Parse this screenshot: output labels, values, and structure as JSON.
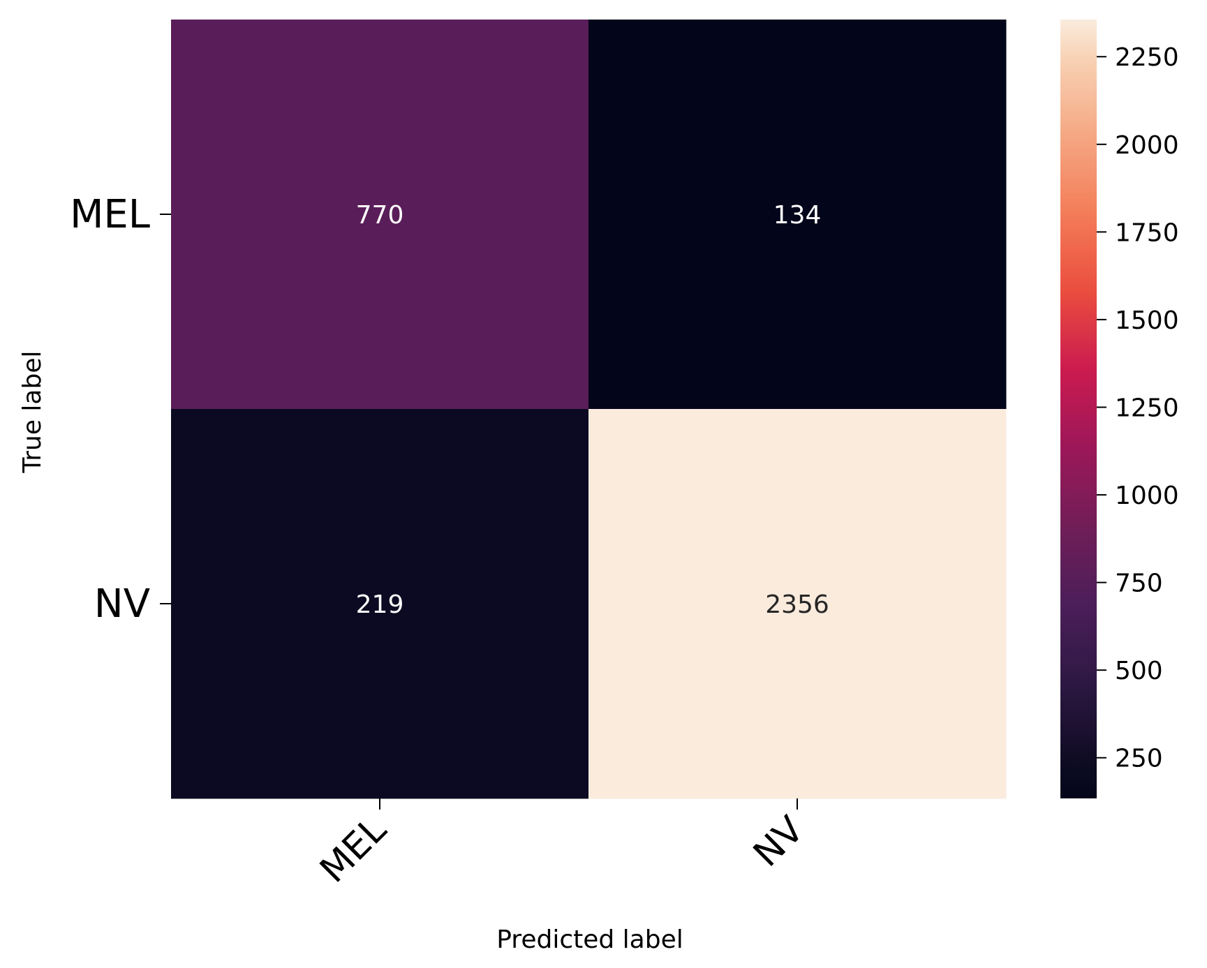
{
  "chart_data": {
    "type": "heatmap",
    "title": "",
    "xlabel": "Predicted label",
    "ylabel": "True label",
    "x_categories": [
      "MEL",
      "NV"
    ],
    "y_categories": [
      "MEL",
      "NV"
    ],
    "values": [
      [
        770,
        134
      ],
      [
        219,
        2356
      ]
    ],
    "colorbar": {
      "min": 134,
      "max": 2356,
      "ticks": [
        250,
        500,
        750,
        1000,
        1250,
        1500,
        1750,
        2000,
        2250
      ],
      "colormap": "rocket"
    },
    "x_tick_rotation": "45deg",
    "grid": false,
    "annotations_shown": true
  }
}
